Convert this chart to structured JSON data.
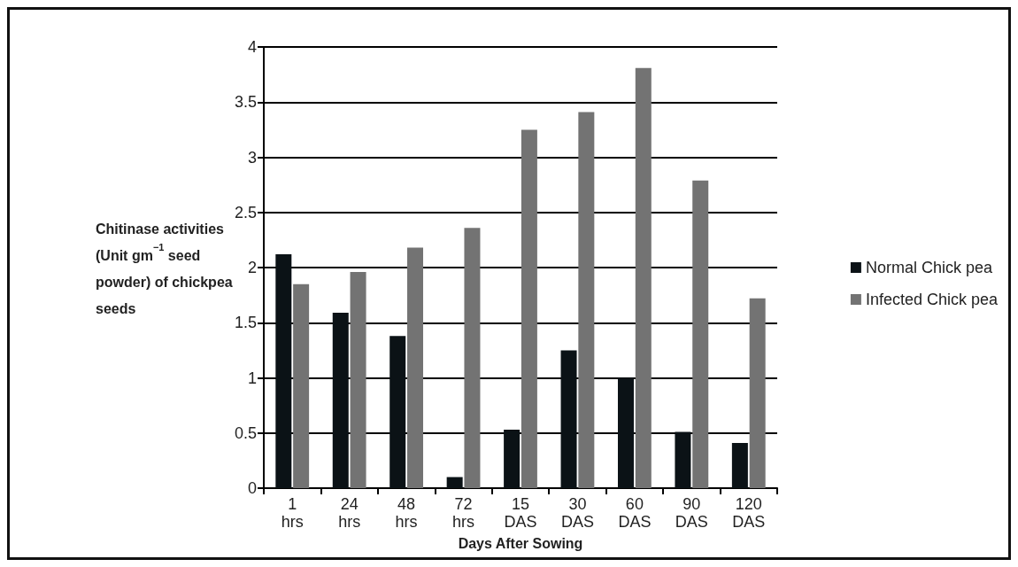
{
  "chart_data": {
    "type": "bar",
    "xlabel": "Days After Sowing",
    "ylabel": "Chitinase activities (Unit gm$^{−1}$ seed powder) of chickpea seeds",
    "categories": [
      "1\nhrs",
      "24\nhrs",
      "48\nhrs",
      "72\nhrs",
      "15\nDAS",
      "30\nDAS",
      "60\nDAS",
      "90\nDAS",
      "120\nDAS"
    ],
    "series": [
      {
        "name": "Normal Chick pea",
        "color": "#0b1216",
        "values": [
          2.12,
          1.59,
          1.38,
          0.1,
          0.53,
          1.25,
          1.0,
          0.51,
          0.41
        ]
      },
      {
        "name": "Infected Chick pea",
        "color": "#737373",
        "values": [
          1.85,
          1.96,
          2.18,
          2.36,
          3.25,
          3.41,
          3.81,
          2.79,
          1.72
        ]
      }
    ],
    "ylim": [
      0,
      4
    ],
    "yticks": [
      0,
      0.5,
      1,
      1.5,
      2,
      2.5,
      3,
      3.5,
      4
    ],
    "grid": "y",
    "legend": "right"
  }
}
